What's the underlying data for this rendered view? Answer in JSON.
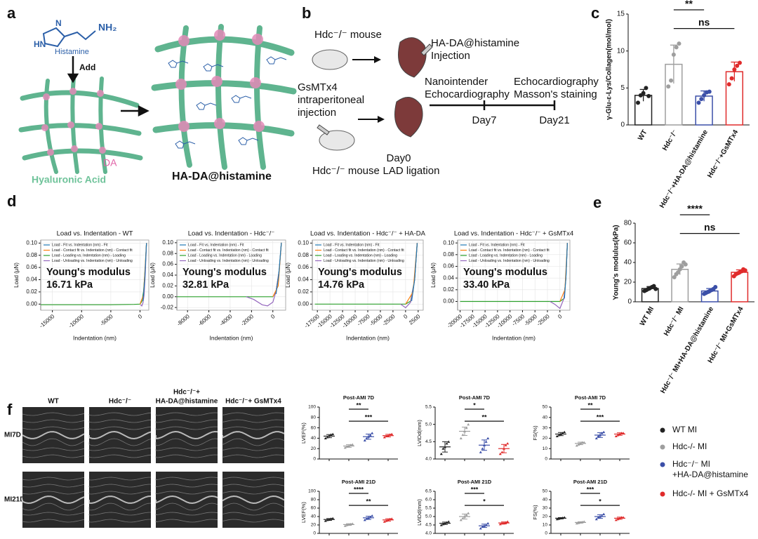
{
  "panel_a": {
    "label": "a",
    "ring_labels": [
      "N",
      "HN"
    ],
    "amine": "NH₂",
    "molecule": "Histamine",
    "arrow_label": "Add",
    "node_label": "DA",
    "fiber_label": "Hyaluronic Acid",
    "product": "HA-DA@histamine"
  },
  "panel_b": {
    "label": "b",
    "mouse_top": "Hdc⁻/⁻ mouse",
    "injection": [
      "HA-DA@histamine",
      "Injection"
    ],
    "gsmtx4": [
      "GsMTx4",
      "intraperitoneal",
      "injection"
    ],
    "day7_tests": [
      "Nanointender",
      "Echocardiography"
    ],
    "day21_tests": [
      "Echocardiography",
      "Masson's staining"
    ],
    "day7": "Day7",
    "day21": "Day21",
    "day0": [
      "Day0",
      "LAD ligation"
    ],
    "mouse_bottom": "Hdc⁻/⁻ mouse"
  },
  "panel_c": {
    "label": "c",
    "chart_data": {
      "type": "bar",
      "ylabel": "γ-Glu-ε-Lys/Collagen(mol/mol)",
      "categories": [
        "WT",
        "Hdc⁻/⁻",
        "Hdc⁻/⁻+HA-DA@histamine",
        "Hdc⁻/⁻+GsMTx4"
      ],
      "colors": [
        "#222222",
        "#9e9e9e",
        "#3b4fa8",
        "#e02b2b"
      ],
      "values": [
        4.0,
        8.2,
        3.9,
        7.2
      ],
      "errors": [
        0.8,
        2.6,
        0.7,
        1.3
      ],
      "points": [
        [
          3.0,
          4.0,
          4.3,
          5.0,
          3.9
        ],
        [
          5.2,
          6.0,
          9.5,
          10.5,
          11.0
        ],
        [
          3.0,
          3.5,
          4.0,
          4.4,
          4.5
        ],
        [
          5.5,
          6.3,
          7.5,
          8.0,
          8.4
        ]
      ],
      "ylim": [
        0,
        15
      ],
      "yticks": [
        0,
        5,
        10,
        15
      ],
      "significance": [
        "**",
        "ns"
      ]
    }
  },
  "panel_d": {
    "label": "d",
    "ylabel": "Load (μN)",
    "xlabel": "Indentation (nm)",
    "modulus_label": "Young's modulus",
    "series_styles": [
      {
        "name": "Load - Fit vs. Indentation (nm) - Fit",
        "color": "#1f77b4"
      },
      {
        "name": "Load - Contact fit vs. Indentation (nm) - Contact fit",
        "color": "#ff7f0e"
      },
      {
        "name": "Load - Loading vs. Indentation (nm) - Loading",
        "color": "#2ca02c"
      },
      {
        "name": "Load - Unloading vs. Indentation (nm) - Unloading",
        "color": "#9467bd"
      }
    ],
    "plots": [
      {
        "type": "line",
        "title": "Load vs. Indentation - WT",
        "modulus": "16.71 kPa",
        "xlim": [
          -17000,
          1500
        ],
        "xticks": [
          -15000,
          -10000,
          -5000,
          0
        ],
        "ylim": [
          -0.01,
          0.105
        ],
        "yticks": [
          {
            "value": 0,
            "label": "0.00"
          },
          {
            "value": 0.02,
            "label": "0.02"
          },
          {
            "value": 0.04,
            "label": "0.04"
          },
          {
            "value": 0.06,
            "label": "0.06"
          },
          {
            "value": 0.08,
            "label": "0.08"
          },
          {
            "value": 0.1,
            "label": "0.10"
          }
        ],
        "curves": [
          {
            "x": [
              500,
              800,
              1100
            ],
            "values": [
              0.005,
              0.04,
              0.1
            ]
          },
          {
            "x": [
              0,
              600,
              1100
            ],
            "values": [
              0,
              0.015,
              0.1
            ]
          },
          {
            "x": [
              -17000,
              -15000,
              -5000,
              -1000,
              0,
              300,
              600,
              900,
              1100
            ],
            "values": [
              -0.001,
              -0.001,
              -0.001,
              -0.0005,
              0,
              0.004,
              0.02,
              0.06,
              0.1
            ]
          },
          {
            "x": [
              1100,
              900,
              700,
              500,
              300,
              100
            ],
            "values": [
              0.1,
              0.05,
              0.015,
              0.002,
              -0.003,
              -0.001
            ]
          }
        ]
      },
      {
        "type": "line",
        "title": "Load vs. Indentation - Hdc⁻/⁻",
        "modulus": "32.81 kPa",
        "xlim": [
          -9000,
          1200
        ],
        "xticks": [
          -8000,
          -6000,
          -4000,
          -2000,
          0
        ],
        "ylim": [
          -0.025,
          0.105
        ],
        "yticks": [
          {
            "value": -0.02,
            "label": "-0.02"
          },
          {
            "value": 0,
            "label": "0.00"
          },
          {
            "value": 0.02,
            "label": "0.02"
          },
          {
            "value": 0.04,
            "label": "0.04"
          },
          {
            "value": 0.06,
            "label": "0.06"
          },
          {
            "value": 0.08,
            "label": "0.08"
          },
          {
            "value": 0.1,
            "label": "0.10"
          }
        ],
        "curves": [
          {
            "x": [
              300,
              550,
              800
            ],
            "values": [
              0.005,
              0.04,
              0.1
            ]
          },
          {
            "x": [
              0,
              500,
              800
            ],
            "values": [
              0,
              0.02,
              0.1
            ]
          },
          {
            "x": [
              -9000,
              -6000,
              -3000,
              -1000,
              0,
              300,
              600,
              800
            ],
            "values": [
              0,
              0,
              0,
              0,
              0,
              0.01,
              0.05,
              0.1
            ]
          },
          {
            "x": [
              800,
              600,
              300,
              0,
              -500,
              -1000,
              -1800,
              -2500
            ],
            "values": [
              0.1,
              0.05,
              0.01,
              -0.01,
              -0.017,
              -0.015,
              -0.005,
              0
            ]
          }
        ]
      },
      {
        "type": "line",
        "title": "Load vs. Indentation - Hdc⁻/⁻ + HA-DA",
        "modulus": "14.76 kPa",
        "xlim": [
          -18500,
          3500
        ],
        "xticks": [
          -17500,
          -15000,
          -12500,
          -10000,
          -7500,
          -5000,
          -2500,
          0,
          2500
        ],
        "ylim": [
          -0.01,
          0.105
        ],
        "yticks": [
          {
            "value": 0,
            "label": "0.00"
          },
          {
            "value": 0.02,
            "label": "0.02"
          },
          {
            "value": 0.04,
            "label": "0.04"
          },
          {
            "value": 0.06,
            "label": "0.06"
          },
          {
            "value": 0.08,
            "label": "0.08"
          },
          {
            "value": 0.1,
            "label": "0.10"
          }
        ],
        "curves": [
          {
            "x": [
              1200,
              1800,
              2300
            ],
            "values": [
              0.005,
              0.04,
              0.1
            ]
          },
          {
            "x": [
              0,
              1500,
              2300
            ],
            "values": [
              0,
              0.02,
              0.1
            ]
          },
          {
            "x": [
              -18000,
              -10000,
              -2000,
              0,
              1000,
              1800,
              2300
            ],
            "values": [
              0,
              0,
              0,
              0,
              0.005,
              0.04,
              0.1
            ]
          },
          {
            "x": [
              2300,
              1800,
              1000,
              0,
              -500,
              -1000
            ],
            "values": [
              0.1,
              0.04,
              0.003,
              -0.006,
              -0.003,
              0
            ]
          }
        ]
      },
      {
        "type": "line",
        "title": "Load vs. Indentation - Hdc⁻/⁻ + GsMTx4",
        "modulus": "33.40 kPa",
        "xlim": [
          -20500,
          2000
        ],
        "xticks": [
          -20000,
          -17500,
          -15000,
          -12500,
          -10000,
          -7500,
          -5000,
          -2500,
          0
        ],
        "ylim": [
          -0.015,
          0.105
        ],
        "yticks": [
          {
            "value": 0,
            "label": "0.00"
          },
          {
            "value": 0.02,
            "label": "0.02"
          },
          {
            "value": 0.04,
            "label": "0.04"
          },
          {
            "value": 0.06,
            "label": "0.06"
          },
          {
            "value": 0.08,
            "label": "0.08"
          },
          {
            "value": 0.1,
            "label": "0.10"
          }
        ],
        "curves": [
          {
            "x": [
              900,
              1200,
              1500
            ],
            "values": [
              0.005,
              0.04,
              0.1
            ]
          },
          {
            "x": [
              0,
              1000,
              1500
            ],
            "values": [
              0,
              0.02,
              0.1
            ]
          },
          {
            "x": [
              -20000,
              -10000,
              -2500,
              0,
              800,
              1200,
              1500
            ],
            "values": [
              0,
              0,
              0,
              0,
              0.005,
              0.04,
              0.1
            ]
          },
          {
            "x": [
              1500,
              1200,
              800,
              0,
              -1000,
              -2000
            ],
            "values": [
              0.1,
              0.04,
              0.005,
              -0.012,
              -0.005,
              0
            ]
          }
        ]
      }
    ]
  },
  "panel_e": {
    "label": "e",
    "chart_data": {
      "type": "bar",
      "ylabel": "Young's modulus(kPa)",
      "categories": [
        "WT MI",
        "Hdc⁻/⁻ MI",
        "Hdc⁻/⁻ MI+HA-DA@histamine",
        "Hdc⁻/⁻ MI+GsMTx4"
      ],
      "colors": [
        "#222222",
        "#9e9e9e",
        "#3b4fa8",
        "#e02b2b"
      ],
      "values": [
        13.5,
        33,
        11,
        30
      ],
      "errors": [
        2,
        5.5,
        2.5,
        2.5
      ],
      "points": [
        [
          11,
          12,
          13,
          14,
          15,
          16,
          13
        ],
        [
          25,
          28,
          30,
          33,
          36,
          40,
          38
        ],
        [
          8,
          9,
          10,
          11,
          12,
          13,
          15
        ],
        [
          26,
          28,
          29,
          30,
          31,
          33,
          32
        ]
      ],
      "ylim": [
        0,
        80
      ],
      "yticks": [
        0,
        20,
        40,
        60,
        80
      ],
      "significance": [
        "****",
        "ns"
      ]
    }
  },
  "panel_f": {
    "label": "f",
    "columns": [
      "WT",
      "Hdc⁻/⁻",
      [
        "Hdc⁻/⁻+",
        "HA-DA@histamine"
      ],
      "Hdc⁻/⁻+ GsMTx4"
    ],
    "rows": [
      "MI7D",
      "MI21D"
    ],
    "groups": [
      {
        "name": "WT MI",
        "color": "#222222"
      },
      {
        "name": "Hdc-/- MI",
        "color": "#9e9e9e"
      },
      {
        "name": [
          "Hdc⁻/⁻ MI",
          "+HA-DA@histamine"
        ],
        "color": "#3b4fa8"
      },
      {
        "name": "Hdc-/- MI + GsMTx4",
        "color": "#e02b2b"
      }
    ],
    "plots": [
      {
        "type": "scatter",
        "title": "Post-AMI 7D",
        "ylabel": "LVEF(%)",
        "ylim": [
          0,
          100
        ],
        "yticks": [
          0,
          20,
          40,
          60,
          80,
          100
        ],
        "values": [
          44,
          25,
          43,
          45
        ],
        "errors": [
          3,
          2.5,
          5,
          2.5
        ],
        "points": [
          [
            40,
            42,
            45,
            47,
            48
          ],
          [
            22,
            24,
            25,
            27,
            28
          ],
          [
            36,
            40,
            43,
            46,
            50
          ],
          [
            42,
            44,
            45,
            47,
            48
          ]
        ],
        "significance": [
          "**",
          "***"
        ]
      },
      {
        "type": "scatter",
        "title": "Post-AMI 7D",
        "ylabel": "LVIDd(mm)",
        "ylim": [
          4.0,
          5.5
        ],
        "yticks": [
          {
            "value": 4,
            "label": "4.0"
          },
          {
            "value": 4.5,
            "label": "4.5"
          },
          {
            "value": 5,
            "label": "5.0"
          },
          {
            "value": 5.5,
            "label": "5.5"
          }
        ],
        "values": [
          4.35,
          4.8,
          4.4,
          4.3
        ],
        "errors": [
          0.15,
          0.12,
          0.15,
          0.12
        ],
        "points": [
          [
            4.15,
            4.3,
            4.35,
            4.45,
            4.5
          ],
          [
            4.6,
            4.7,
            4.8,
            4.9,
            5.0
          ],
          [
            4.2,
            4.3,
            4.4,
            4.5,
            4.6
          ],
          [
            4.15,
            4.2,
            4.3,
            4.4,
            4.45
          ]
        ],
        "significance": [
          "*",
          "**"
        ]
      },
      {
        "type": "scatter",
        "title": "Post-AMI 7D",
        "ylabel": "FS(%)",
        "ylim": [
          0,
          50
        ],
        "yticks": [
          0,
          10,
          20,
          30,
          40,
          50
        ],
        "values": [
          24,
          15,
          23,
          24
        ],
        "errors": [
          1.5,
          1.2,
          2.3,
          1.2
        ],
        "points": [
          [
            22,
            23,
            24,
            25,
            26
          ],
          [
            13,
            14,
            15,
            16,
            16
          ],
          [
            20,
            22,
            23,
            25,
            26
          ],
          [
            22,
            23,
            24,
            25,
            25
          ]
        ],
        "significance": [
          "**",
          "***"
        ]
      },
      {
        "type": "scatter",
        "title": "Post-AMI 21D",
        "ylabel": "LVEF(%)",
        "ylim": [
          0,
          100
        ],
        "yticks": [
          0,
          20,
          40,
          60,
          80,
          100
        ],
        "values": [
          33,
          21,
          37,
          32
        ],
        "errors": [
          2.3,
          2,
          3.8,
          2.8
        ],
        "points": [
          [
            30,
            32,
            33,
            35,
            36
          ],
          [
            18,
            20,
            21,
            22,
            23
          ],
          [
            32,
            35,
            37,
            39,
            42
          ],
          [
            28,
            30,
            32,
            34,
            35
          ]
        ],
        "significance": [
          "****",
          "**"
        ]
      },
      {
        "type": "scatter",
        "title": "Post-AMI 21D",
        "ylabel": "LVIDd(mm)",
        "ylim": [
          4.0,
          6.5
        ],
        "yticks": [
          {
            "value": 4,
            "label": "4.0"
          },
          {
            "value": 4.5,
            "label": "4.5"
          },
          {
            "value": 5,
            "label": "5.0"
          },
          {
            "value": 5.5,
            "label": "5.5"
          },
          {
            "value": 6,
            "label": "6.0"
          },
          {
            "value": 6.5,
            "label": "6.5"
          }
        ],
        "values": [
          4.6,
          5.0,
          4.45,
          4.62
        ],
        "errors": [
          0.07,
          0.15,
          0.1,
          0.06
        ],
        "points": [
          [
            4.5,
            4.55,
            4.6,
            4.65,
            4.7
          ],
          [
            4.8,
            4.9,
            5.0,
            5.1,
            5.2
          ],
          [
            4.3,
            4.4,
            4.45,
            4.5,
            4.6
          ],
          [
            4.55,
            4.6,
            4.6,
            4.65,
            4.7
          ]
        ],
        "significance": [
          "***",
          "*"
        ]
      },
      {
        "type": "scatter",
        "title": "Post-AMI 21D",
        "ylabel": "FS(%)",
        "ylim": [
          0,
          50
        ],
        "yticks": [
          0,
          10,
          20,
          30,
          40,
          50
        ],
        "values": [
          18,
          13,
          20,
          18
        ],
        "errors": [
          0.8,
          0.8,
          2.2,
          1.3
        ],
        "points": [
          [
            17,
            17.5,
            18,
            18.5,
            19
          ],
          [
            12,
            12.5,
            13,
            13.5,
            14
          ],
          [
            17,
            19,
            20,
            21,
            23
          ],
          [
            16,
            17,
            18,
            19,
            19
          ]
        ],
        "significance": [
          "***",
          "*"
        ]
      }
    ]
  }
}
